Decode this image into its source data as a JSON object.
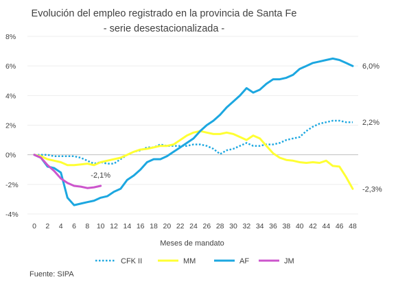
{
  "chart_data": {
    "type": "line",
    "title": "Evolución del empleo registrado en la provincia de Santa Fe",
    "subtitle": "- serie desestacionalizada -",
    "xlabel": "Meses de mandato",
    "ylabel": "",
    "xlim": [
      0,
      48
    ],
    "ylim": [
      -4,
      8
    ],
    "x_ticks": [
      "0",
      "2",
      "4",
      "6",
      "8",
      "10",
      "12",
      "14",
      "16",
      "18",
      "20",
      "22",
      "24",
      "26",
      "28",
      "30",
      "32",
      "34",
      "36",
      "38",
      "40",
      "42",
      "44",
      "46",
      "48"
    ],
    "y_ticks": [
      "8%",
      "6%",
      "4%",
      "2%",
      "0%",
      "-2%",
      "-4%"
    ],
    "y_tick_values": [
      8,
      6,
      4,
      2,
      0,
      -2,
      -4
    ],
    "grid": "horizontal",
    "legend_position": "bottom",
    "source": "Fuente: SIPA",
    "series": [
      {
        "name": "CFK II",
        "color": "#1CA7E0",
        "style": "dotted",
        "x": [
          0,
          1,
          2,
          3,
          4,
          5,
          6,
          7,
          8,
          9,
          10,
          11,
          12,
          13,
          14,
          15,
          16,
          17,
          18,
          19,
          20,
          21,
          22,
          23,
          24,
          25,
          26,
          27,
          28,
          29,
          30,
          31,
          32,
          33,
          34,
          35,
          36,
          37,
          38,
          39,
          40,
          41,
          42,
          43,
          44,
          45,
          46,
          47,
          48
        ],
        "values": [
          0,
          0,
          0,
          -0.1,
          -0.1,
          -0.1,
          -0.1,
          -0.2,
          -0.4,
          -0.6,
          -0.5,
          -0.6,
          -0.6,
          -0.3,
          0,
          0.2,
          0.3,
          0.5,
          0.5,
          0.7,
          0.6,
          0.6,
          0.6,
          0.6,
          0.7,
          0.7,
          0.6,
          0.4,
          0.05,
          0.3,
          0.4,
          0.6,
          0.8,
          0.6,
          0.6,
          0.7,
          0.7,
          0.8,
          1,
          1.1,
          1.2,
          1.6,
          1.9,
          2.1,
          2.2,
          2.3,
          2.3,
          2.2,
          2.2
        ],
        "end_label": "2,2%"
      },
      {
        "name": "MM",
        "color": "#FFFF33",
        "style": "solid",
        "x": [
          0,
          1,
          2,
          3,
          4,
          5,
          6,
          7,
          8,
          9,
          10,
          11,
          12,
          13,
          14,
          15,
          16,
          17,
          18,
          19,
          20,
          21,
          22,
          23,
          24,
          25,
          26,
          27,
          28,
          29,
          30,
          31,
          32,
          33,
          34,
          35,
          36,
          37,
          38,
          39,
          40,
          41,
          42,
          43,
          44,
          45,
          46,
          47,
          48
        ],
        "values": [
          0,
          -0.1,
          -0.3,
          -0.4,
          -0.5,
          -0.7,
          -0.7,
          -0.65,
          -0.6,
          -0.7,
          -0.5,
          -0.4,
          -0.3,
          -0.2,
          0,
          0.2,
          0.35,
          0.4,
          0.5,
          0.6,
          0.6,
          0.7,
          1,
          1.3,
          1.5,
          1.6,
          1.5,
          1.4,
          1.4,
          1.5,
          1.4,
          1.2,
          1,
          1.3,
          1.1,
          0.6,
          0.1,
          -0.2,
          -0.35,
          -0.4,
          -0.5,
          -0.55,
          -0.5,
          -0.55,
          -0.4,
          -0.75,
          -0.8,
          -1.5,
          -2.3
        ],
        "end_label": "-2,3%"
      },
      {
        "name": "AF",
        "color": "#1CA7E0",
        "style": "solid",
        "x": [
          0,
          1,
          2,
          3,
          4,
          5,
          6,
          7,
          8,
          9,
          10,
          11,
          12,
          13,
          14,
          15,
          16,
          17,
          18,
          19,
          20,
          21,
          22,
          23,
          24,
          25,
          26,
          27,
          28,
          29,
          30,
          31,
          32,
          33,
          34,
          35,
          36,
          37,
          38,
          39,
          40,
          41,
          42,
          43,
          44,
          45,
          46,
          47,
          48
        ],
        "values": [
          0,
          -0.2,
          -0.8,
          -0.9,
          -1.2,
          -2.9,
          -3.4,
          -3.3,
          -3.2,
          -3.1,
          -2.9,
          -2.8,
          -2.5,
          -2.3,
          -1.7,
          -1.4,
          -1,
          -0.5,
          -0.3,
          -0.3,
          -0.1,
          0.2,
          0.5,
          0.8,
          1.1,
          1.6,
          2,
          2.3,
          2.7,
          3.2,
          3.6,
          4,
          4.5,
          4.2,
          4.4,
          4.8,
          5.1,
          5.1,
          5.2,
          5.4,
          5.8,
          6,
          6.2,
          6.3,
          6.4,
          6.5,
          6.4,
          6.2,
          6
        ],
        "end_label": "6,0%"
      },
      {
        "name": "JM",
        "color": "#CC55CC",
        "style": "solid",
        "x": [
          0,
          1,
          2,
          3,
          4,
          5,
          6,
          7,
          8,
          9,
          10
        ],
        "values": [
          0,
          -0.2,
          -0.7,
          -1.1,
          -1.6,
          -1.9,
          -2.1,
          -2.15,
          -2.25,
          -2.2,
          -2.1
        ],
        "end_label": "-2,1%"
      }
    ]
  }
}
